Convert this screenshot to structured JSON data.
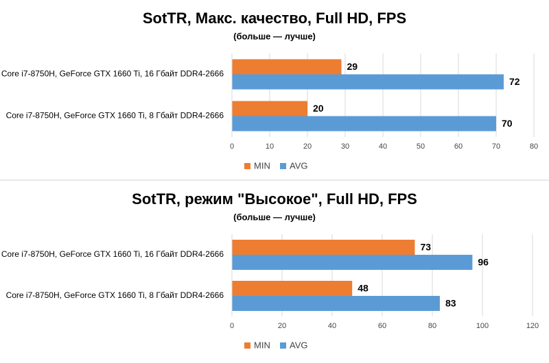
{
  "chart_data": [
    {
      "type": "barh",
      "title": "SotTR, Макс. качество, Full HD, FPS",
      "subtitle": "(больше — лучше)",
      "categories": [
        "Core i7-8750H, GeForce GTX 1660 Ti, 16 Гбайт DDR4-2666",
        "Core i7-8750H, GeForce GTX 1660 Ti, 8 Гбайт DDR4-2666"
      ],
      "series": [
        {
          "name": "MIN",
          "color": "#ed7d31",
          "values": [
            29,
            20
          ]
        },
        {
          "name": "AVG",
          "color": "#5b9bd5",
          "values": [
            72,
            70
          ]
        }
      ],
      "xlim": [
        0,
        80
      ],
      "xticks": [
        0,
        10,
        20,
        30,
        40,
        50,
        60,
        70,
        80
      ],
      "grid": true,
      "legend": "bottom"
    },
    {
      "type": "barh",
      "title": "SotTR, режим \"Высокое\", Full HD, FPS",
      "subtitle": "(больше — лучше)",
      "categories": [
        "Core i7-8750H, GeForce GTX 1660 Ti, 16 Гбайт DDR4-2666",
        "Core i7-8750H, GeForce GTX 1660 Ti, 8 Гбайт DDR4-2666"
      ],
      "series": [
        {
          "name": "MIN",
          "color": "#ed7d31",
          "values": [
            73,
            48
          ]
        },
        {
          "name": "AVG",
          "color": "#5b9bd5",
          "values": [
            96,
            83
          ]
        }
      ],
      "xlim": [
        0,
        120
      ],
      "xticks": [
        0,
        20,
        40,
        60,
        80,
        100,
        120
      ],
      "grid": true,
      "legend": "bottom"
    }
  ]
}
